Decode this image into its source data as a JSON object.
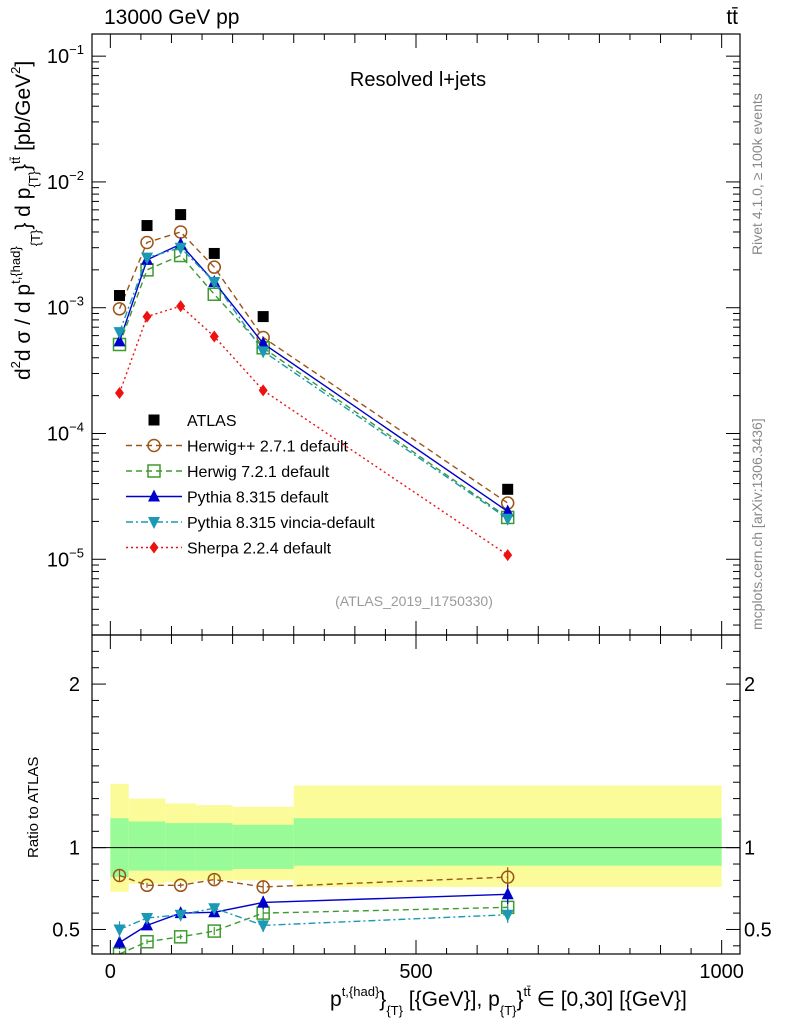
{
  "chart_data": {
    "type": "line",
    "header": {
      "left": "13000 GeV pp",
      "right": "tt̄"
    },
    "title": "Resolved l+jets",
    "watermark": "(ATLAS_2019_I1750330)",
    "side_texts": {
      "rivet": "Rivet 4.1.0, ≥ 100k events",
      "mcplots": "mcplots.cern.ch [arXiv:1306.3436]"
    },
    "ylabel": "d²σ / d p^{t,{had}}_{T} d p_{T}^{tt̄} [pb/GeV²]",
    "ylabel_main_text": "d σ / d p",
    "ylabel_unit_text": "[pb/GeV",
    "ratio_ylabel": "Ratio to ATLAS",
    "xlabel": "p^{t,{had}}_{T} [{GeV}], p_{T}^{tt̄} ∈ [0,30] [{GeV}]",
    "xlabel_text_a": "p",
    "xlabel_text_b": "[{GeV}], p",
    "xlabel_text_c": "∈ [0,30] [{GeV}]",
    "xlim": [
      -30,
      1030
    ],
    "ylim": [
      2.5e-06,
      0.15
    ],
    "ratio_ylim": [
      0.35,
      2.3
    ],
    "x_ticks": [
      {
        "v": 0,
        "label": "0"
      },
      {
        "v": 500,
        "label": "500"
      },
      {
        "v": 1000,
        "label": "1000"
      }
    ],
    "y_ticks": [
      {
        "exp": -1,
        "label": "10",
        "sup": "−1"
      },
      {
        "exp": -2,
        "label": "10",
        "sup": "−2"
      },
      {
        "exp": -3,
        "label": "10",
        "sup": "−3"
      },
      {
        "exp": -4,
        "label": "10",
        "sup": "−4"
      },
      {
        "exp": -5,
        "label": "10",
        "sup": "−5"
      }
    ],
    "ratio_ticks": [
      {
        "v": 0.5,
        "label": "0.5"
      },
      {
        "v": 1,
        "label": "1"
      },
      {
        "v": 2,
        "label": "2"
      }
    ],
    "bins": [
      [
        0,
        30
      ],
      [
        30,
        90
      ],
      [
        90,
        140
      ],
      [
        140,
        200
      ],
      [
        200,
        300
      ],
      [
        300,
        1000
      ]
    ],
    "band_inner": [
      [
        0.82,
        1.18
      ],
      [
        0.86,
        1.16
      ],
      [
        0.86,
        1.15
      ],
      [
        0.86,
        1.15
      ],
      [
        0.87,
        1.14
      ],
      [
        0.89,
        1.18
      ]
    ],
    "band_outer": [
      [
        0.73,
        1.39
      ],
      [
        0.78,
        1.3
      ],
      [
        0.79,
        1.27
      ],
      [
        0.8,
        1.26
      ],
      [
        0.8,
        1.25
      ],
      [
        0.76,
        1.38
      ]
    ],
    "data": {
      "name": "ATLAS",
      "x": [
        15,
        60,
        115,
        170,
        250,
        650
      ],
      "y": [
        0.00125,
        0.0045,
        0.0055,
        0.0027,
        0.00085,
        3.6e-05
      ]
    },
    "series": [
      {
        "name": "Herwig++ 2.7.1 default",
        "color": "#9c5518",
        "marker": "circle",
        "dash": "6,4",
        "x": [
          15,
          60,
          115,
          170,
          250,
          650
        ],
        "y": [
          0.00098,
          0.0033,
          0.004,
          0.0021,
          0.00058,
          2.8e-05
        ],
        "ratio": [
          0.83,
          0.77,
          0.77,
          0.805,
          0.76,
          0.82
        ],
        "ratio_err": [
          0.04,
          0.015,
          0.015,
          0.03,
          0.04,
          0.06
        ]
      },
      {
        "name": "Herwig 7.2.1 default",
        "color": "#3d9a2c",
        "marker": "square",
        "dash": "6,4",
        "x": [
          15,
          60,
          115,
          170,
          250,
          650
        ],
        "y": [
          0.00051,
          0.002,
          0.0026,
          0.00128,
          0.00048,
          2.15e-05
        ],
        "ratio": [
          0.35,
          0.425,
          0.455,
          0.49,
          0.6,
          0.635
        ],
        "ratio_err": [
          0.02,
          0.015,
          0.015,
          0.025,
          0.04,
          0.05
        ]
      },
      {
        "name": "Pythia 8.315 default",
        "color": "#0000cc",
        "marker": "triangle-up",
        "dash": "",
        "x": [
          15,
          60,
          115,
          170,
          250,
          650
        ],
        "y": [
          0.00054,
          0.0024,
          0.0032,
          0.0016,
          0.00052,
          2.4e-05
        ],
        "ratio": [
          0.42,
          0.525,
          0.6,
          0.605,
          0.665,
          0.715
        ],
        "ratio_err": [
          0.04,
          0.02,
          0.025,
          0.03,
          0.04,
          0.06
        ]
      },
      {
        "name": "Pythia 8.315 vincia-default",
        "color": "#1a98b4",
        "marker": "triangle-down",
        "dash": "7,3,2,3",
        "x": [
          15,
          60,
          115,
          170,
          250,
          650
        ],
        "y": [
          0.00064,
          0.0025,
          0.003,
          0.0016,
          0.00045,
          2.1e-05
        ],
        "ratio": [
          0.5,
          0.57,
          0.59,
          0.63,
          0.525,
          0.59
        ],
        "ratio_err": [
          0.05,
          0.02,
          0.025,
          0.03,
          0.04,
          0.05
        ]
      },
      {
        "name": "Sherpa 2.2.4 default",
        "color": "#ee1111",
        "marker": "diamond",
        "dash": "2,3",
        "x": [
          15,
          60,
          115,
          170,
          250,
          650
        ],
        "y": [
          0.00021,
          0.00085,
          0.00103,
          0.00059,
          0.00022,
          1.08e-05
        ],
        "ratio": null,
        "ratio_err": null
      }
    ]
  }
}
